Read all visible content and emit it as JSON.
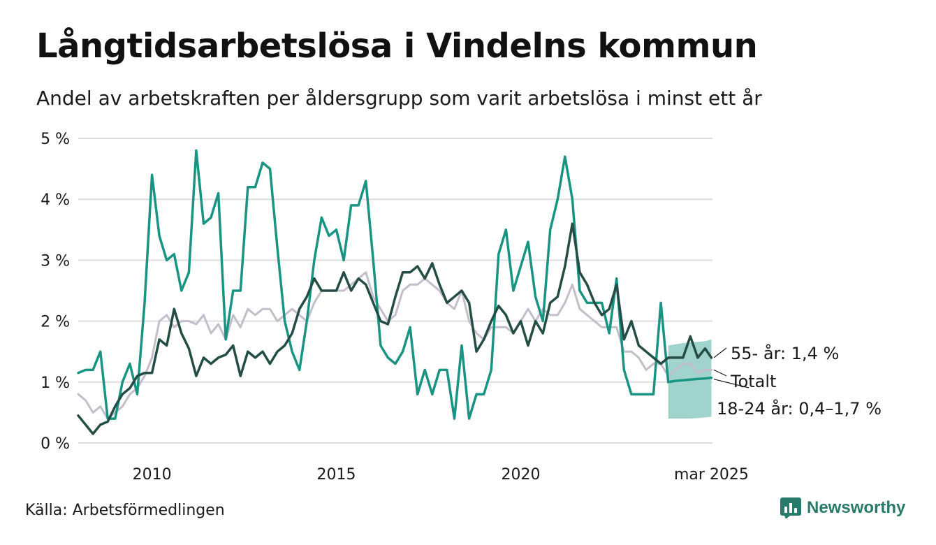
{
  "header": {
    "title": "Långtidsarbetslösa i Vindelns kommun",
    "subtitle": "Andel av arbetskraften per åldersgrupp som varit arbetslösa i minst ett år"
  },
  "footer": {
    "source": "Källa: Arbetsförmedlingen",
    "brand": "Newsworthy"
  },
  "colors": {
    "young": "#1a9482",
    "young_band": "#9fd3cb",
    "older": "#234d45",
    "total": "#c3bec9",
    "grid": "#dedde2",
    "brand": "#2a7a6c"
  },
  "chart_data": {
    "type": "line",
    "title": "Långtidsarbetslösa i Vindelns kommun",
    "subtitle": "Andel av arbetskraften per åldersgrupp som varit arbetslösa i minst ett år",
    "xlim": [
      2008.0,
      2025.2
    ],
    "ylim": [
      0,
      5
    ],
    "y_unit": "%",
    "x_ticks": [
      2010,
      2015,
      2020,
      2025.17
    ],
    "x_tick_labels": [
      "2010",
      "2015",
      "2020",
      "mar 2025"
    ],
    "y_ticks": [
      0,
      1,
      2,
      3,
      4,
      5
    ],
    "y_tick_labels": [
      "0 %",
      "1 %",
      "2 %",
      "3 %",
      "4 %",
      "5 %"
    ],
    "grid": true,
    "series": [
      {
        "name": "18-24 år",
        "label": "18-24 år: 0,4–1,7 %",
        "key": "young",
        "x": [
          2008.0,
          2008.2,
          2008.4,
          2008.6,
          2008.8,
          2009.0,
          2009.2,
          2009.4,
          2009.6,
          2009.8,
          2010.0,
          2010.2,
          2010.4,
          2010.6,
          2010.8,
          2011.0,
          2011.2,
          2011.4,
          2011.6,
          2011.8,
          2012.0,
          2012.2,
          2012.4,
          2012.6,
          2012.8,
          2013.0,
          2013.2,
          2013.4,
          2013.6,
          2013.8,
          2014.0,
          2014.2,
          2014.4,
          2014.6,
          2014.8,
          2015.0,
          2015.2,
          2015.4,
          2015.6,
          2015.8,
          2016.0,
          2016.2,
          2016.4,
          2016.6,
          2016.8,
          2017.0,
          2017.2,
          2017.4,
          2017.6,
          2017.8,
          2018.0,
          2018.2,
          2018.4,
          2018.6,
          2018.8,
          2019.0,
          2019.2,
          2019.4,
          2019.6,
          2019.8,
          2020.0,
          2020.2,
          2020.4,
          2020.6,
          2020.8,
          2021.0,
          2021.2,
          2021.4,
          2021.6,
          2021.8,
          2022.0,
          2022.2,
          2022.4,
          2022.6,
          2022.8,
          2023.0,
          2023.2,
          2023.4,
          2023.6,
          2023.8,
          2024.0,
          2024.2,
          2024.4,
          2024.6,
          2024.8,
          2025.0,
          2025.17
        ],
        "values": [
          1.15,
          1.2,
          1.2,
          1.5,
          0.4,
          0.4,
          1.0,
          1.3,
          0.8,
          2.3,
          4.4,
          3.4,
          3.0,
          3.1,
          2.5,
          2.8,
          4.8,
          3.6,
          3.7,
          4.1,
          1.7,
          2.5,
          2.5,
          4.2,
          4.2,
          4.6,
          4.5,
          3.2,
          2.0,
          1.5,
          1.2,
          2.0,
          3.0,
          3.7,
          3.4,
          3.5,
          3.0,
          3.9,
          3.9,
          4.3,
          3.0,
          1.6,
          1.4,
          1.3,
          1.5,
          1.9,
          0.8,
          1.2,
          0.8,
          1.2,
          1.2,
          0.4,
          1.6,
          0.4,
          0.8,
          0.8,
          1.2,
          3.1,
          3.5,
          2.5,
          2.9,
          3.3,
          2.4,
          2.0,
          3.5,
          4.0,
          4.7,
          4.0,
          2.5,
          2.3,
          2.3,
          2.3,
          1.8,
          2.7,
          1.2,
          0.8,
          0.8,
          0.8,
          0.8,
          2.3,
          1.0,
          1.02,
          1.03,
          1.04,
          1.05,
          1.06,
          1.07
        ],
        "band": {
          "x": [
            2024.0,
            2024.2,
            2024.4,
            2024.6,
            2024.8,
            2025.0,
            2025.17
          ],
          "low": [
            0.4,
            0.4,
            0.4,
            0.4,
            0.41,
            0.42,
            0.43
          ],
          "high": [
            1.6,
            1.62,
            1.64,
            1.65,
            1.66,
            1.67,
            1.7
          ]
        }
      },
      {
        "name": "55- år",
        "label": "55- år: 1,4 %",
        "key": "older",
        "x": [
          2008.0,
          2008.2,
          2008.4,
          2008.6,
          2008.8,
          2009.0,
          2009.2,
          2009.4,
          2009.6,
          2009.8,
          2010.0,
          2010.2,
          2010.4,
          2010.6,
          2010.8,
          2011.0,
          2011.2,
          2011.4,
          2011.6,
          2011.8,
          2012.0,
          2012.2,
          2012.4,
          2012.6,
          2012.8,
          2013.0,
          2013.2,
          2013.4,
          2013.6,
          2013.8,
          2014.0,
          2014.2,
          2014.4,
          2014.6,
          2014.8,
          2015.0,
          2015.2,
          2015.4,
          2015.6,
          2015.8,
          2016.0,
          2016.2,
          2016.4,
          2016.6,
          2016.8,
          2017.0,
          2017.2,
          2017.4,
          2017.6,
          2017.8,
          2018.0,
          2018.2,
          2018.4,
          2018.6,
          2018.8,
          2019.0,
          2019.2,
          2019.4,
          2019.6,
          2019.8,
          2020.0,
          2020.2,
          2020.4,
          2020.6,
          2020.8,
          2021.0,
          2021.2,
          2021.4,
          2021.6,
          2021.8,
          2022.0,
          2022.2,
          2022.4,
          2022.6,
          2022.8,
          2023.0,
          2023.2,
          2023.4,
          2023.6,
          2023.8,
          2024.0,
          2024.2,
          2024.4,
          2024.6,
          2024.8,
          2025.0,
          2025.17
        ],
        "values": [
          0.45,
          0.3,
          0.15,
          0.3,
          0.35,
          0.6,
          0.8,
          0.9,
          1.1,
          1.15,
          1.15,
          1.7,
          1.6,
          2.2,
          1.8,
          1.55,
          1.1,
          1.4,
          1.3,
          1.4,
          1.45,
          1.6,
          1.1,
          1.5,
          1.4,
          1.5,
          1.3,
          1.5,
          1.6,
          1.8,
          2.2,
          2.4,
          2.7,
          2.5,
          2.5,
          2.5,
          2.8,
          2.5,
          2.7,
          2.6,
          2.3,
          2.0,
          1.95,
          2.4,
          2.8,
          2.8,
          2.9,
          2.7,
          2.95,
          2.6,
          2.3,
          2.4,
          2.5,
          2.3,
          1.5,
          1.7,
          2.0,
          2.25,
          2.1,
          1.8,
          2.0,
          1.6,
          2.0,
          1.8,
          2.3,
          2.4,
          2.9,
          3.6,
          2.8,
          2.6,
          2.3,
          2.1,
          2.2,
          2.6,
          1.7,
          2.0,
          1.6,
          1.5,
          1.4,
          1.3,
          1.4,
          1.4,
          1.4,
          1.75,
          1.4,
          1.55,
          1.4
        ]
      },
      {
        "name": "Totalt",
        "label": "Totalt",
        "key": "total",
        "x": [
          2008.0,
          2008.2,
          2008.4,
          2008.6,
          2008.8,
          2009.0,
          2009.2,
          2009.4,
          2009.6,
          2009.8,
          2010.0,
          2010.2,
          2010.4,
          2010.6,
          2010.8,
          2011.0,
          2011.2,
          2011.4,
          2011.6,
          2011.8,
          2012.0,
          2012.2,
          2012.4,
          2012.6,
          2012.8,
          2013.0,
          2013.2,
          2013.4,
          2013.6,
          2013.8,
          2014.0,
          2014.2,
          2014.4,
          2014.6,
          2014.8,
          2015.0,
          2015.2,
          2015.4,
          2015.6,
          2015.8,
          2016.0,
          2016.2,
          2016.4,
          2016.6,
          2016.8,
          2017.0,
          2017.2,
          2017.4,
          2017.6,
          2017.8,
          2018.0,
          2018.2,
          2018.4,
          2018.6,
          2018.8,
          2019.0,
          2019.2,
          2019.4,
          2019.6,
          2019.8,
          2020.0,
          2020.2,
          2020.4,
          2020.6,
          2020.8,
          2021.0,
          2021.2,
          2021.4,
          2021.6,
          2021.8,
          2022.0,
          2022.2,
          2022.4,
          2022.6,
          2022.8,
          2023.0,
          2023.2,
          2023.4,
          2023.6,
          2023.8,
          2024.0,
          2024.2,
          2024.4,
          2024.6,
          2024.8,
          2025.0,
          2025.17
        ],
        "values": [
          0.8,
          0.7,
          0.5,
          0.6,
          0.4,
          0.5,
          0.6,
          0.8,
          0.9,
          1.1,
          1.4,
          2.0,
          2.1,
          1.9,
          2.0,
          2.0,
          1.95,
          2.1,
          1.8,
          1.95,
          1.7,
          2.1,
          1.9,
          2.2,
          2.1,
          2.2,
          2.2,
          2.0,
          2.1,
          2.2,
          2.1,
          2.0,
          2.3,
          2.5,
          2.5,
          2.5,
          2.5,
          2.6,
          2.7,
          2.8,
          2.4,
          2.2,
          2.0,
          2.1,
          2.5,
          2.6,
          2.6,
          2.7,
          2.6,
          2.5,
          2.3,
          2.2,
          2.5,
          2.0,
          1.8,
          1.7,
          1.9,
          1.9,
          1.9,
          1.8,
          2.0,
          2.2,
          2.0,
          2.2,
          2.1,
          2.1,
          2.3,
          2.6,
          2.2,
          2.1,
          2.0,
          1.9,
          1.9,
          1.9,
          1.5,
          1.5,
          1.4,
          1.2,
          1.3,
          1.3,
          1.1,
          1.2,
          1.3,
          1.3,
          1.15,
          1.2,
          1.2
        ]
      }
    ]
  }
}
